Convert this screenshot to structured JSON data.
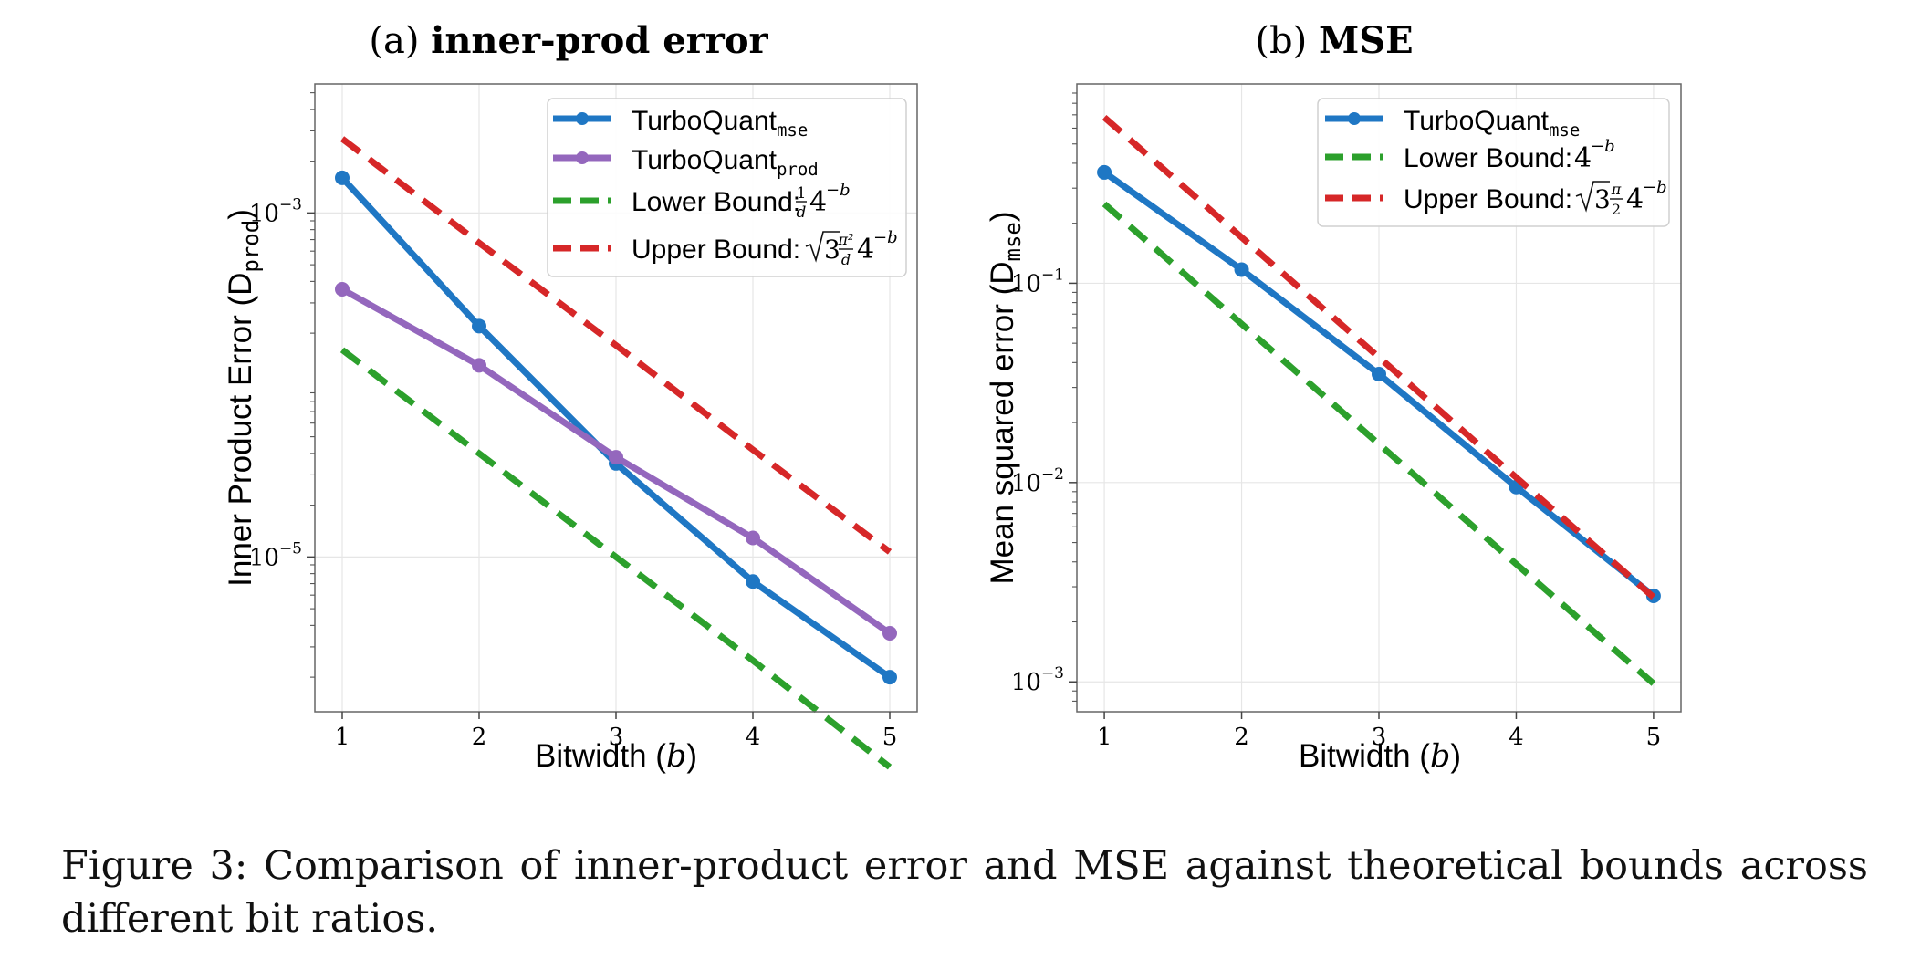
{
  "colors": {
    "turbo_mse": "#1f77c4",
    "turbo_prod": "#9467bd",
    "lower": "#2ca02c",
    "upper": "#d62728",
    "frame": "#666666",
    "grid": "#e6e6e6"
  },
  "chart_data": [
    {
      "type": "line",
      "panel": "(a)",
      "title": "inner-prod error",
      "xlabel": "Bitwidth (b)",
      "ylabel": "Inner Product Error (D",
      "ylabel_sub": "prod",
      "ylabel_end": ")",
      "yscale": "log",
      "x": [
        1,
        2,
        3,
        4,
        5
      ],
      "xlim": [
        0.8,
        5.2
      ],
      "ylim_log10": [
        -5.9,
        -2.25
      ],
      "yticks": [
        {
          "log10": -3,
          "base": "10",
          "exp": "−3"
        },
        {
          "log10": -5,
          "base": "10",
          "exp": "−5"
        }
      ],
      "grid": true,
      "legend_position": "upper right",
      "series": [
        {
          "name": "TurboQuant",
          "name_sub": "mse",
          "style": "solid",
          "marker": true,
          "color_key": "turbo_mse",
          "values": [
            0.0016,
            0.00022,
            3.5e-05,
            7.2e-06,
            2e-06
          ]
        },
        {
          "name": "TurboQuant",
          "name_sub": "prod",
          "style": "solid",
          "marker": true,
          "color_key": "turbo_prod",
          "values": [
            0.00036,
            0.00013,
            3.8e-05,
            1.29e-05,
            3.6e-06
          ]
        },
        {
          "name": "Lower Bound: ",
          "formula": "¼4^-b",
          "style": "dashed",
          "marker": false,
          "color_key": "lower",
          "values": [
            0.00016,
            4e-05,
            1e-05,
            2.5e-06,
            6e-07
          ]
        },
        {
          "name": "Upper Bound: ",
          "formula": "√3π²/d·4^-b",
          "style": "dashed",
          "marker": false,
          "color_key": "upper",
          "values": [
            0.0027,
            0.00067,
            0.00017,
            4.2e-05,
            1.07e-05
          ]
        }
      ]
    },
    {
      "type": "line",
      "panel": "(b)",
      "title": "MSE",
      "xlabel": "Bitwidth (b)",
      "ylabel": "Mean squared error (D",
      "ylabel_sub": "mse",
      "ylabel_end": ")",
      "yscale": "log",
      "x": [
        1,
        2,
        3,
        4,
        5
      ],
      "xlim": [
        0.8,
        5.2
      ],
      "ylim_log10": [
        -3.15,
        0.0
      ],
      "yticks": [
        {
          "log10": -1,
          "base": "10",
          "exp": "−1"
        },
        {
          "log10": -2,
          "base": "10",
          "exp": "−2"
        },
        {
          "log10": -3,
          "base": "10",
          "exp": "−3"
        }
      ],
      "grid": true,
      "legend_position": "upper right",
      "series": [
        {
          "name": "TurboQuant",
          "name_sub": "mse",
          "style": "solid",
          "marker": true,
          "color_key": "turbo_mse",
          "values": [
            0.36,
            0.117,
            0.035,
            0.0095,
            0.0027
          ]
        },
        {
          "name": "Lower Bound: ",
          "formula": "4^-b",
          "style": "dashed",
          "marker": false,
          "color_key": "lower",
          "values": [
            0.25,
            0.0625,
            0.0156,
            0.0039,
            0.00098
          ]
        },
        {
          "name": "Upper Bound: ",
          "formula": "√3π/2·4^-b",
          "style": "dashed",
          "marker": false,
          "color_key": "upper",
          "values": [
            0.68,
            0.17,
            0.0425,
            0.0106,
            0.00266
          ]
        }
      ]
    }
  ],
  "caption": "Figure 3: Comparison of inner-product error and MSE against theoretical bounds across different bit ratios."
}
